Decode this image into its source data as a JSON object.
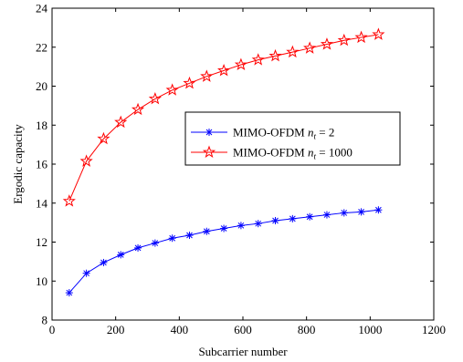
{
  "chart_data": {
    "type": "line",
    "title": "",
    "xlabel": "Subcarrier number",
    "ylabel": "Ergodic capacity",
    "xlim": [
      0,
      1200
    ],
    "ylim": [
      8,
      24
    ],
    "xticks": [
      0,
      200,
      400,
      600,
      800,
      1000,
      1200
    ],
    "yticks": [
      8,
      10,
      12,
      14,
      16,
      18,
      20,
      22,
      24
    ],
    "grid": false,
    "legend_position": "center-right",
    "series": [
      {
        "name": "MIMO-OFDM",
        "name_math_var": "n",
        "name_math_sub": "t",
        "name_math_value": "= 2",
        "color": "#0000ff",
        "marker": "asterisk",
        "x": [
          54,
          108,
          162,
          216,
          270,
          324,
          378,
          432,
          486,
          540,
          594,
          648,
          702,
          756,
          810,
          864,
          918,
          972,
          1026
        ],
        "y": [
          9.4,
          10.4,
          10.95,
          11.35,
          11.7,
          11.95,
          12.2,
          12.35,
          12.55,
          12.7,
          12.85,
          12.95,
          13.1,
          13.2,
          13.3,
          13.4,
          13.5,
          13.55,
          13.65
        ]
      },
      {
        "name": "MIMO-OFDM",
        "name_math_var": "n",
        "name_math_sub": "t",
        "name_math_value": "= 1000",
        "color": "#ff0000",
        "marker": "star",
        "x": [
          54,
          108,
          162,
          216,
          270,
          324,
          378,
          432,
          486,
          540,
          594,
          648,
          702,
          756,
          810,
          864,
          918,
          972,
          1026
        ],
        "y": [
          14.1,
          16.15,
          17.3,
          18.15,
          18.8,
          19.35,
          19.8,
          20.15,
          20.5,
          20.8,
          21.1,
          21.35,
          21.55,
          21.75,
          21.95,
          22.15,
          22.35,
          22.5,
          22.65
        ]
      }
    ]
  }
}
